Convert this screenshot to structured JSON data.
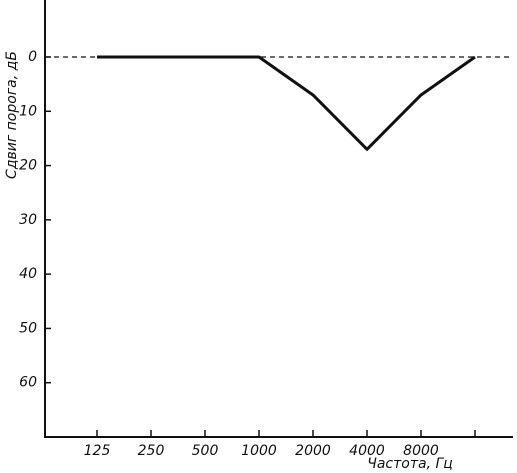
{
  "chart_data": {
    "type": "line",
    "y_label": "Сдвиг порога, дБ",
    "x_label": "Частота, Гц",
    "categories": [
      "125",
      "250",
      "500",
      "1000",
      "2000",
      "4000",
      "8000",
      null
    ],
    "series": [
      {
        "name": "Сдвиг порога",
        "color": "#111111",
        "values": [
          0,
          0,
          0,
          0,
          7,
          17,
          7,
          0
        ]
      }
    ],
    "reference_line": {
      "value": 0,
      "style": "dashed"
    },
    "ylim": [
      -10,
      70
    ],
    "yticks": [
      0,
      10,
      20,
      30,
      40,
      50,
      60
    ],
    "y_inverted": true,
    "grid": false
  }
}
